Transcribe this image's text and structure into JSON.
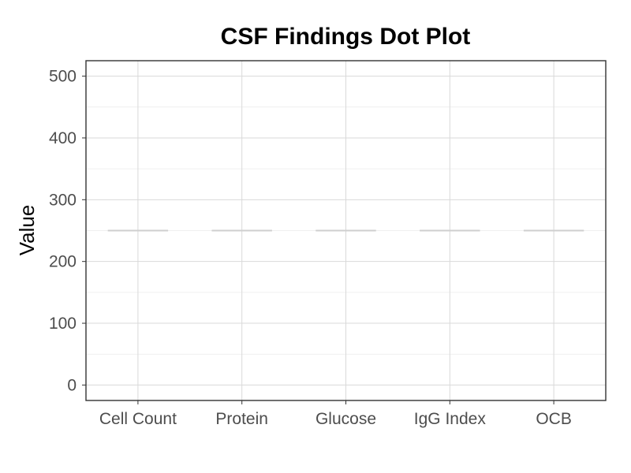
{
  "chart_data": {
    "type": "dot",
    "title": "CSF Findings Dot Plot",
    "xlabel": "",
    "ylabel": "Value",
    "categories": [
      "Cell Count",
      "Protein",
      "Glucose",
      "IgG Index",
      "OCB"
    ],
    "values": [
      250,
      250,
      250,
      250,
      250
    ],
    "ylim": [
      -25,
      525
    ],
    "yticks": [
      0,
      100,
      200,
      300,
      400,
      500
    ],
    "grid": true,
    "legend": "none",
    "colors": {
      "background": "#ffffff",
      "panel_border": "#333333",
      "grid": "#d9d9d9",
      "grid_minor": "#ebebeb",
      "mark": "#cfcfcf",
      "tick_text": "#4d4d4d",
      "title_text": "#000000"
    }
  }
}
